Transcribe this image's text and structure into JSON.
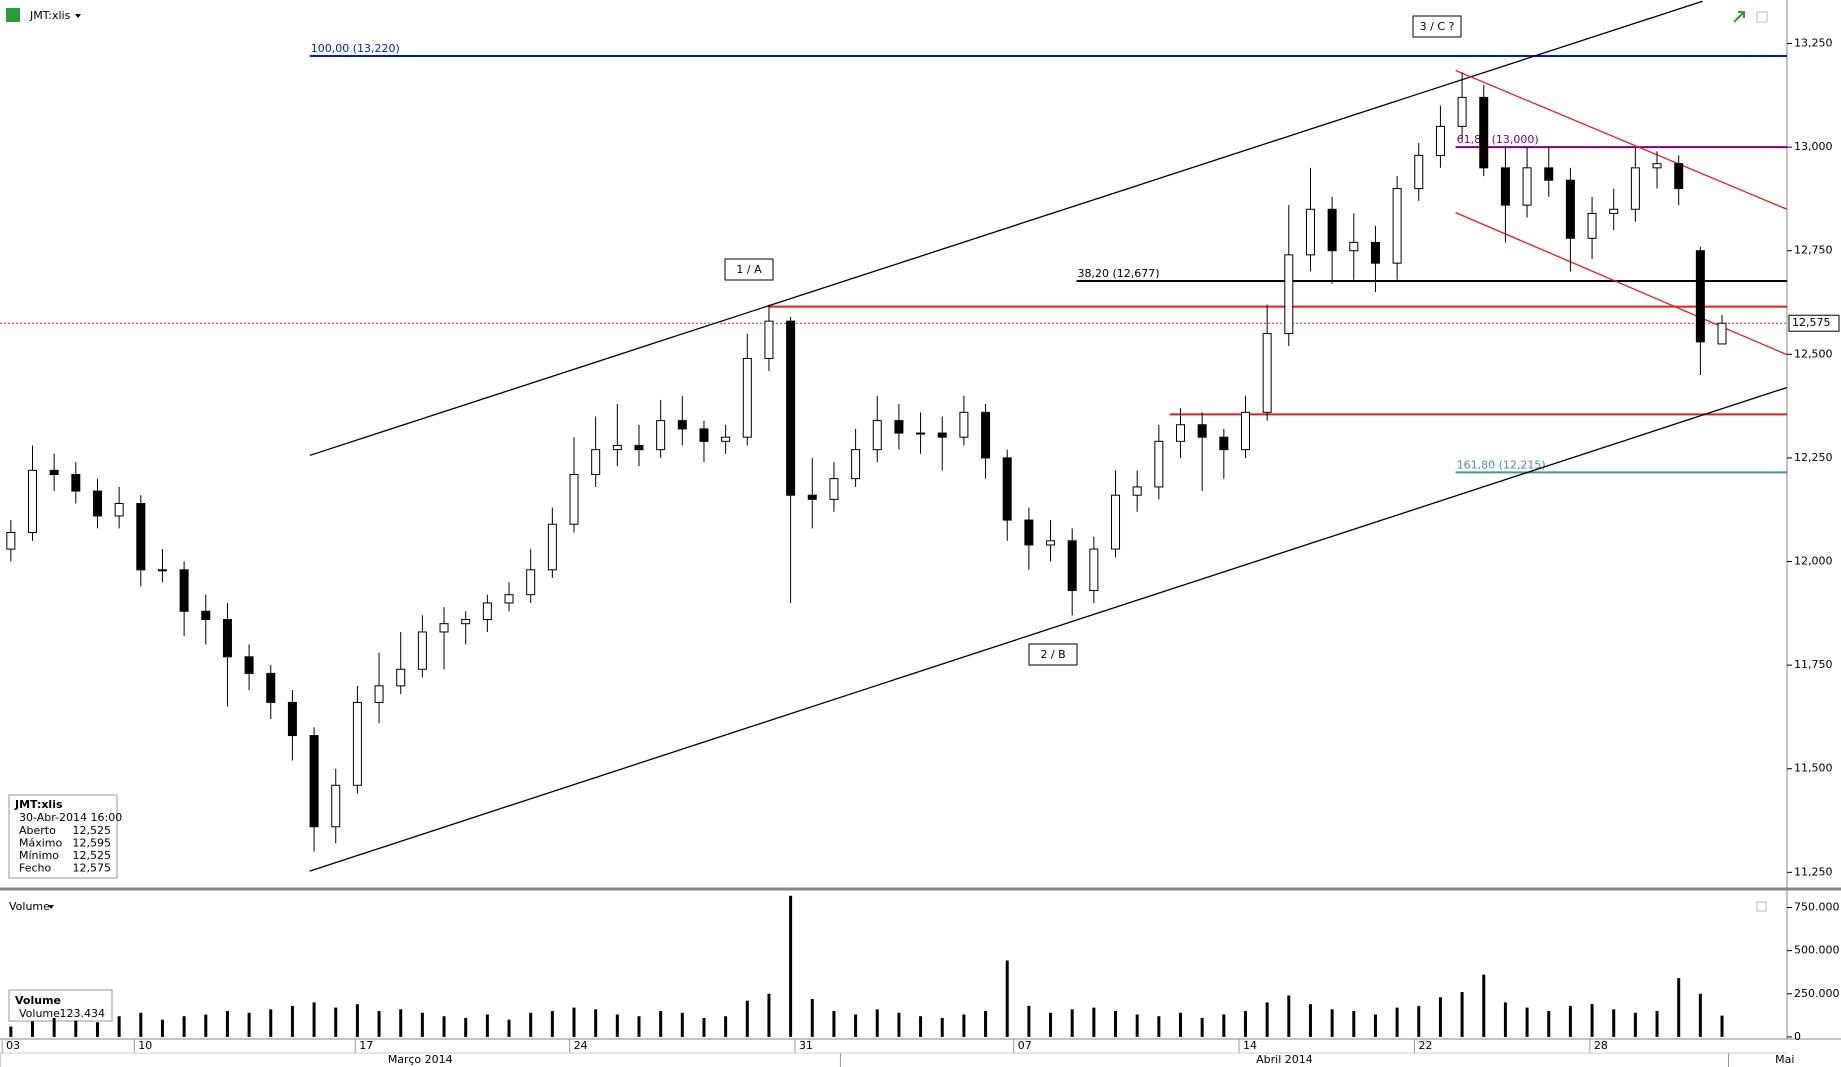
{
  "symbol": "JMT:xlis",
  "info_box": {
    "datetime": "30-Abr-2014 16:00",
    "rows": [
      [
        "Aberto",
        "12,525"
      ],
      [
        "Máximo",
        "12,595"
      ],
      [
        "Mínimo",
        "12,525"
      ],
      [
        "Fecho",
        "12,575"
      ]
    ]
  },
  "volume_box": {
    "rows": [
      [
        "Volume",
        "123.434"
      ]
    ]
  },
  "annotations": [
    "1 / A",
    "2 / B",
    "3 / C ?"
  ],
  "chart_data": [
    {
      "type": "candlestick",
      "open": [
        12.03,
        12.07,
        12.22,
        12.21,
        12.17,
        12.11,
        12.14,
        11.98,
        11.98,
        11.88,
        11.86,
        11.77,
        11.73,
        11.66,
        11.58,
        11.36,
        11.46,
        11.66,
        11.7,
        11.74,
        11.83,
        11.85,
        11.86,
        11.9,
        11.92,
        11.98,
        12.09,
        12.21,
        12.27,
        12.28,
        12.27,
        12.34,
        12.32,
        12.29,
        12.3,
        12.49,
        12.58,
        12.16,
        12.15,
        12.2,
        12.27,
        12.34,
        12.31,
        12.31,
        12.3,
        12.36,
        12.25,
        12.1,
        12.04,
        12.05,
        11.93,
        12.03,
        12.16,
        12.18,
        12.29,
        12.33,
        12.3,
        12.27,
        12.36,
        12.55,
        12.74,
        12.85,
        12.75,
        12.77,
        12.72,
        12.9,
        12.98,
        13.05,
        13.12,
        12.95,
        12.86,
        12.95,
        12.92,
        12.78,
        12.84,
        12.85,
        12.95,
        12.96,
        12.75,
        12.525
      ],
      "high": [
        12.1,
        12.28,
        12.26,
        12.24,
        12.2,
        12.18,
        12.16,
        12.03,
        12.0,
        11.92,
        11.9,
        11.8,
        11.75,
        11.69,
        11.6,
        11.5,
        11.7,
        11.78,
        11.83,
        11.87,
        11.89,
        11.88,
        11.92,
        11.95,
        12.03,
        12.13,
        12.3,
        12.35,
        12.38,
        12.33,
        12.39,
        12.4,
        12.34,
        12.33,
        12.55,
        12.62,
        12.59,
        12.25,
        12.24,
        12.32,
        12.4,
        12.38,
        12.36,
        12.35,
        12.4,
        12.38,
        12.27,
        12.13,
        12.1,
        12.08,
        12.06,
        12.22,
        12.22,
        12.33,
        12.37,
        12.36,
        12.32,
        12.4,
        12.62,
        12.86,
        12.95,
        12.88,
        12.84,
        12.81,
        12.93,
        13.01,
        13.1,
        13.18,
        13.15,
        13.0,
        13.0,
        13.0,
        12.95,
        12.88,
        12.9,
        13.0,
        12.99,
        12.98,
        12.76,
        12.595
      ],
      "low": [
        12.0,
        12.05,
        12.17,
        12.14,
        12.08,
        12.08,
        11.94,
        11.95,
        11.82,
        11.8,
        11.65,
        11.69,
        11.62,
        11.52,
        11.3,
        11.32,
        11.44,
        11.61,
        11.68,
        11.72,
        11.74,
        11.8,
        11.83,
        11.88,
        11.9,
        11.96,
        12.07,
        12.18,
        12.23,
        12.23,
        12.25,
        12.28,
        12.24,
        12.26,
        12.28,
        12.46,
        11.9,
        12.08,
        12.12,
        12.18,
        12.24,
        12.27,
        12.26,
        12.22,
        12.28,
        12.2,
        12.05,
        11.98,
        12.0,
        11.87,
        11.9,
        12.01,
        12.12,
        12.15,
        12.25,
        12.17,
        12.2,
        12.25,
        12.34,
        12.52,
        12.7,
        12.67,
        12.68,
        12.65,
        12.68,
        12.87,
        12.95,
        13.02,
        12.93,
        12.77,
        12.83,
        12.88,
        12.7,
        12.73,
        12.8,
        12.82,
        12.9,
        12.86,
        12.45,
        12.525
      ],
      "close": [
        12.07,
        12.22,
        12.21,
        12.17,
        12.11,
        12.14,
        11.98,
        11.98,
        11.88,
        11.86,
        11.77,
        11.73,
        11.66,
        11.58,
        11.36,
        11.46,
        11.66,
        11.7,
        11.74,
        11.83,
        11.85,
        11.86,
        11.9,
        11.92,
        11.98,
        12.09,
        12.21,
        12.27,
        12.28,
        12.27,
        12.34,
        12.32,
        12.29,
        12.3,
        12.49,
        12.58,
        12.16,
        12.15,
        12.2,
        12.27,
        12.34,
        12.31,
        12.31,
        12.3,
        12.36,
        12.25,
        12.1,
        12.04,
        12.05,
        11.93,
        12.03,
        12.16,
        12.18,
        12.29,
        12.33,
        12.3,
        12.27,
        12.36,
        12.55,
        12.74,
        12.85,
        12.75,
        12.77,
        12.72,
        12.9,
        12.98,
        13.05,
        13.12,
        12.95,
        12.86,
        12.95,
        12.92,
        12.78,
        12.84,
        12.85,
        12.95,
        12.96,
        12.9,
        12.53,
        12.575
      ],
      "xlim": [
        -0.5,
        82
      ],
      "xticks": [
        {
          "value": -0.4,
          "label": "03"
        },
        {
          "value": 5.7,
          "label": "10"
        },
        {
          "value": 15.9,
          "label": "17"
        },
        {
          "value": 25.8,
          "label": "24"
        },
        {
          "value": 36.2,
          "label": "31"
        },
        {
          "value": 46.3,
          "label": "07"
        },
        {
          "value": 56.7,
          "label": "14"
        },
        {
          "value": 64.8,
          "label": "22"
        },
        {
          "value": 72.9,
          "label": "28"
        }
      ],
      "x2ticks": [
        {
          "value": -0.5,
          "label": "Março 2014"
        },
        {
          "value": 38.3,
          "label": "Abril 2014"
        },
        {
          "value": 79.3,
          "label": "Mai"
        }
      ],
      "ylim": [
        11.217,
        13.355
      ],
      "yticks": [
        {
          "value": 11.25,
          "label": "11,250"
        },
        {
          "value": 11.5,
          "label": "11,500"
        },
        {
          "value": 11.75,
          "label": "11,750"
        },
        {
          "value": 12,
          "label": "12,000"
        },
        {
          "value": 12.25,
          "label": "12,250"
        },
        {
          "value": 12.5,
          "label": "12,500"
        },
        {
          "value": 12.75,
          "label": "12,750"
        },
        {
          "value": 13,
          "label": "13,000"
        },
        {
          "value": 13.25,
          "label": "13,250"
        }
      ],
      "trendlines": [
        {
          "x": [
            13.8,
            78.1
          ],
          "y": [
            12.256,
            13.352
          ],
          "color": "#000000"
        },
        {
          "x": [
            13.8,
            82
          ],
          "y": [
            11.253,
            12.42
          ],
          "color": "#000000"
        },
        {
          "x": [
            66.7,
            82
          ],
          "y": [
            13.185,
            12.85
          ],
          "color": "#e02020"
        },
        {
          "x": [
            66.7,
            82
          ],
          "y": [
            12.842,
            12.499
          ],
          "color": "#e02020"
        }
      ],
      "levels": [
        {
          "value": 13.22,
          "start": 13.8,
          "color": "#0020c0",
          "label": "100,00 (13,220)"
        },
        {
          "value": 13.0,
          "start": 66.7,
          "color": "#800080",
          "label": "61,80 (13,000)"
        },
        {
          "value": 12.677,
          "start": 49.2,
          "color": "#000000",
          "label": "38,20 (12,677)"
        },
        {
          "value": 12.215,
          "start": 66.7,
          "color": "#4a90a8",
          "label": "161,80 (12,215)"
        },
        {
          "value": 12.615,
          "start": 35,
          "color": "#e02020"
        },
        {
          "value": 12.355,
          "start": 53.5,
          "color": "#e02020"
        }
      ],
      "last": {
        "value": 12.575,
        "label": "12,575",
        "color": "#e02020"
      }
    },
    {
      "type": "bar",
      "title": "Volume",
      "color": "#000000",
      "values": [
        60000,
        90000,
        110000,
        95000,
        85000,
        120000,
        140000,
        100000,
        120000,
        130000,
        150000,
        140000,
        160000,
        180000,
        200000,
        170000,
        190000,
        150000,
        160000,
        140000,
        120000,
        110000,
        130000,
        100000,
        140000,
        150000,
        170000,
        160000,
        130000,
        120000,
        150000,
        140000,
        110000,
        120000,
        210000,
        250000,
        818000,
        220000,
        150000,
        130000,
        160000,
        140000,
        120000,
        110000,
        130000,
        150000,
        443000,
        180000,
        140000,
        160000,
        170000,
        150000,
        130000,
        120000,
        140000,
        110000,
        130000,
        150000,
        200000,
        240000,
        190000,
        160000,
        150000,
        130000,
        170000,
        180000,
        230000,
        260000,
        361000,
        200000,
        170000,
        150000,
        180000,
        190000,
        160000,
        140000,
        150000,
        341000,
        250000,
        123434
      ],
      "xlim": [
        -0.5,
        82
      ],
      "ylim": [
        -12000,
        840000
      ],
      "yticks": [
        0,
        {
          "value": 250000,
          "label": "250.000"
        },
        {
          "value": 500000,
          "label": "500.000"
        },
        {
          "value": 750000,
          "label": "750.000"
        }
      ]
    }
  ]
}
